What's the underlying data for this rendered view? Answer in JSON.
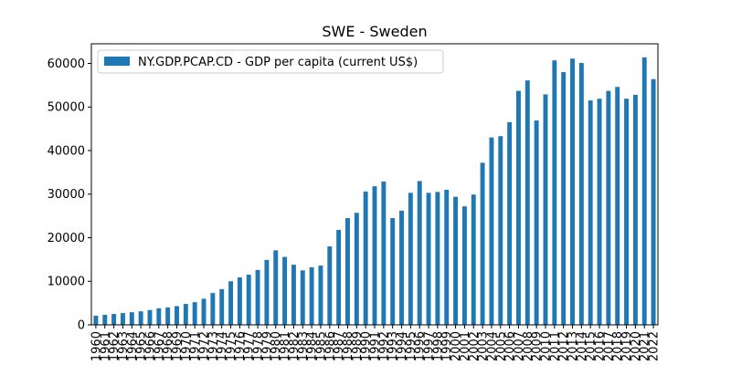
{
  "chart_data": {
    "type": "bar",
    "title": "SWE - Sweden",
    "xlabel": "",
    "ylabel": "",
    "ylim": [
      0,
      64500
    ],
    "yticks": [
      0,
      10000,
      20000,
      30000,
      40000,
      50000,
      60000
    ],
    "grid": false,
    "legend_position": "top-left",
    "bar_color": "#1f77b4",
    "categories": [
      "1960",
      "1961",
      "1962",
      "1963",
      "1964",
      "1965",
      "1966",
      "1967",
      "1968",
      "1969",
      "1970",
      "1971",
      "1972",
      "1973",
      "1974",
      "1975",
      "1976",
      "1977",
      "1978",
      "1979",
      "1980",
      "1981",
      "1982",
      "1983",
      "1984",
      "1985",
      "1986",
      "1987",
      "1988",
      "1989",
      "1990",
      "1991",
      "1992",
      "1993",
      "1994",
      "1995",
      "1996",
      "1997",
      "1998",
      "1999",
      "2000",
      "2001",
      "2002",
      "2003",
      "2004",
      "2005",
      "2006",
      "2007",
      "2008",
      "2009",
      "2010",
      "2011",
      "2012",
      "2013",
      "2014",
      "2015",
      "2016",
      "2017",
      "2018",
      "2019",
      "2020",
      "2021",
      "2022"
    ],
    "series": [
      {
        "name": "NY.GDP.PCAP.CD - GDP per capita (current US$)",
        "values": [
          2100,
          2300,
          2500,
          2700,
          2900,
          3100,
          3400,
          3800,
          4000,
          4300,
          4800,
          5200,
          6000,
          7300,
          8200,
          10000,
          10900,
          11500,
          12600,
          14900,
          17100,
          15600,
          13800,
          12500,
          13200,
          13600,
          18000,
          21800,
          24500,
          25700,
          30600,
          31800,
          32900,
          24500,
          26200,
          30300,
          33000,
          30300,
          30500,
          31000,
          29400,
          27200,
          29900,
          37200,
          43000,
          43300,
          46500,
          53700,
          56100,
          46900,
          52900,
          60700,
          58000,
          61100,
          60100,
          51500,
          51900,
          53700,
          54600,
          51900,
          52800,
          61400,
          56400
        ]
      }
    ]
  }
}
